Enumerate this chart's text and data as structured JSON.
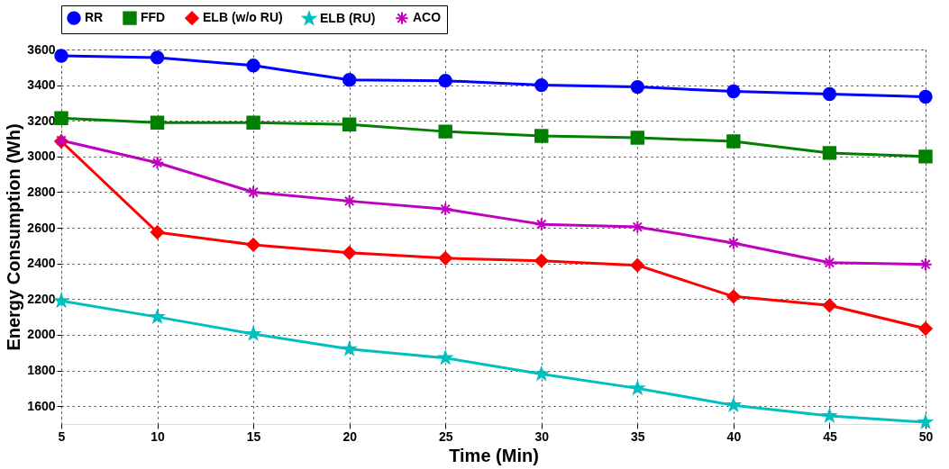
{
  "chart_data": {
    "type": "line",
    "xlabel": "Time (Min)",
    "ylabel": "Energy Consumption (Wh)",
    "x": [
      5,
      10,
      15,
      20,
      25,
      30,
      35,
      40,
      45,
      50
    ],
    "xlim": [
      5,
      50
    ],
    "xticks": [
      5,
      10,
      15,
      20,
      25,
      30,
      35,
      40,
      45,
      50
    ],
    "ylim": [
      1500,
      3600
    ],
    "yticks": [
      1600,
      1800,
      2000,
      2200,
      2400,
      2600,
      2800,
      3000,
      3200,
      3400,
      3600
    ],
    "grid": true,
    "legend": "top",
    "line_style": "solid",
    "series": [
      {
        "name": "RR",
        "color": "#0000ff",
        "marker": "circle",
        "values": [
          3565,
          3555,
          3510,
          3430,
          3425,
          3400,
          3390,
          3365,
          3350,
          3335
        ]
      },
      {
        "name": "FFD",
        "color": "#007f00",
        "marker": "square",
        "values": [
          3215,
          3190,
          3190,
          3180,
          3140,
          3115,
          3105,
          3085,
          3020,
          3000
        ]
      },
      {
        "name": "ELB (w/o RU)",
        "color": "#ff0000",
        "marker": "diamond",
        "values": [
          3085,
          2575,
          2505,
          2460,
          2430,
          2415,
          2390,
          2215,
          2165,
          2035
        ]
      },
      {
        "name": "ELB (RU)",
        "color": "#00bfbf",
        "marker": "star",
        "values": [
          2190,
          2100,
          2005,
          1920,
          1870,
          1780,
          1700,
          1605,
          1545,
          1510
        ]
      },
      {
        "name": "ACO",
        "color": "#bf00bf",
        "marker": "cross",
        "values": [
          3090,
          2965,
          2800,
          2750,
          2705,
          2620,
          2605,
          2515,
          2405,
          2395
        ]
      }
    ]
  }
}
